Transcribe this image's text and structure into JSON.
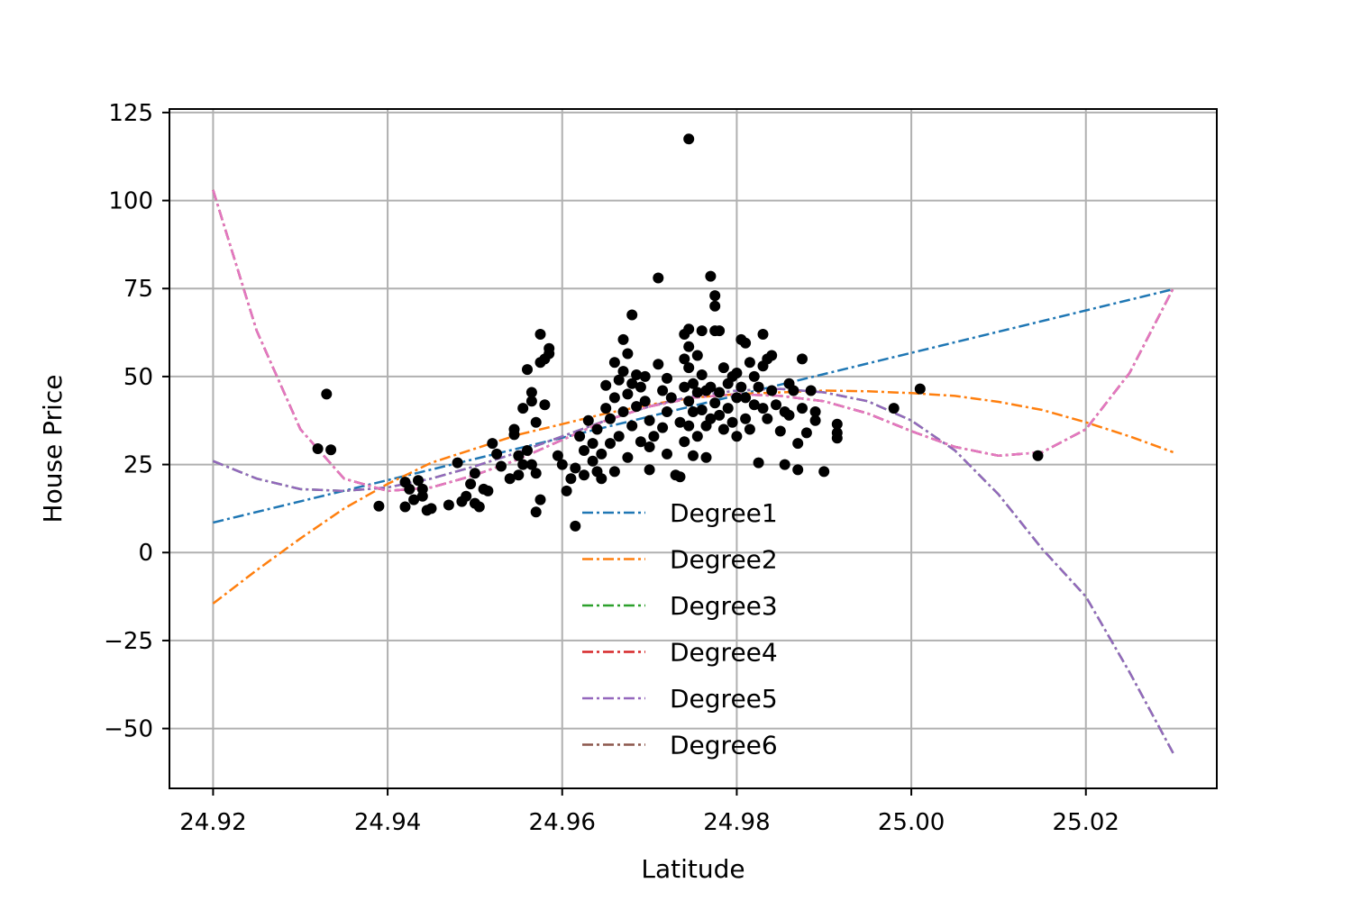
{
  "chart_data": {
    "type": "scatter",
    "title": "",
    "xlabel": "Latitude",
    "ylabel": "House Price",
    "xlim": [
      24.915,
      25.035
    ],
    "ylim": [
      -67,
      126
    ],
    "xticks": [
      24.92,
      24.94,
      24.96,
      24.98,
      25.0,
      25.02
    ],
    "xtick_labels": [
      "24.92",
      "24.94",
      "24.96",
      "24.98",
      "25.00",
      "25.02"
    ],
    "yticks": [
      125,
      100,
      75,
      50,
      25,
      0,
      -25,
      -50
    ],
    "ytick_labels": [
      "125",
      "100",
      "75",
      "50",
      "25",
      "0",
      "−25",
      "−50"
    ],
    "grid": true,
    "legend_position": "lower-center",
    "scatter": {
      "color": "#000000",
      "points": [
        [
          24.933,
          45
        ],
        [
          24.932,
          29.5
        ],
        [
          24.9335,
          29.2
        ],
        [
          24.939,
          13.2
        ],
        [
          24.942,
          20
        ],
        [
          24.9425,
          18
        ],
        [
          24.942,
          13
        ],
        [
          24.943,
          15
        ],
        [
          24.9435,
          20.5
        ],
        [
          24.944,
          16
        ],
        [
          24.9445,
          12
        ],
        [
          24.945,
          12.5
        ],
        [
          24.944,
          18
        ],
        [
          24.948,
          25.5
        ],
        [
          24.947,
          13.5
        ],
        [
          24.9485,
          14.5
        ],
        [
          24.949,
          16
        ],
        [
          24.9495,
          19.5
        ],
        [
          24.95,
          22.5
        ],
        [
          24.95,
          14
        ],
        [
          24.9505,
          13
        ],
        [
          24.951,
          18
        ],
        [
          24.9515,
          17.5
        ],
        [
          24.952,
          31
        ],
        [
          24.9525,
          28
        ],
        [
          24.953,
          24.5
        ],
        [
          24.954,
          21
        ],
        [
          24.9545,
          33.5
        ],
        [
          24.955,
          27.5
        ],
        [
          24.955,
          22
        ],
        [
          24.9555,
          25
        ],
        [
          24.956,
          52
        ],
        [
          24.9565,
          45.5
        ],
        [
          24.9565,
          43
        ],
        [
          24.957,
          37
        ],
        [
          24.9575,
          62
        ],
        [
          24.9575,
          54
        ],
        [
          24.958,
          55
        ],
        [
          24.9585,
          58
        ],
        [
          24.9585,
          56.5
        ],
        [
          24.9575,
          15
        ],
        [
          24.957,
          11.5
        ],
        [
          24.958,
          42
        ],
        [
          24.9555,
          41
        ],
        [
          24.9545,
          35
        ],
        [
          24.956,
          29
        ],
        [
          24.9565,
          25
        ],
        [
          24.957,
          22.5
        ],
        [
          24.9595,
          27.5
        ],
        [
          24.96,
          25
        ],
        [
          24.9605,
          17.5
        ],
        [
          24.961,
          21
        ],
        [
          24.9615,
          24
        ],
        [
          24.9615,
          7.5
        ],
        [
          24.962,
          33
        ],
        [
          24.9625,
          29
        ],
        [
          24.9625,
          22
        ],
        [
          24.963,
          37.5
        ],
        [
          24.9635,
          31
        ],
        [
          24.9635,
          26
        ],
        [
          24.964,
          23
        ],
        [
          24.964,
          35
        ],
        [
          24.9645,
          28
        ],
        [
          24.9645,
          21
        ],
        [
          24.965,
          47.5
        ],
        [
          24.965,
          41
        ],
        [
          24.9655,
          38
        ],
        [
          24.9655,
          31
        ],
        [
          24.966,
          54
        ],
        [
          24.966,
          44
        ],
        [
          24.966,
          23
        ],
        [
          24.9665,
          49
        ],
        [
          24.9665,
          33
        ],
        [
          24.967,
          60.5
        ],
        [
          24.967,
          51.5
        ],
        [
          24.967,
          40
        ],
        [
          24.9675,
          56.5
        ],
        [
          24.9675,
          45
        ],
        [
          24.9675,
          27
        ],
        [
          24.968,
          67.5
        ],
        [
          24.968,
          48
        ],
        [
          24.968,
          36
        ],
        [
          24.9685,
          50.5
        ],
        [
          24.9685,
          41.5
        ],
        [
          24.969,
          47
        ],
        [
          24.969,
          31.5
        ],
        [
          24.9695,
          50
        ],
        [
          24.9695,
          43
        ],
        [
          24.97,
          37.5
        ],
        [
          24.97,
          30
        ],
        [
          24.97,
          23.5
        ],
        [
          24.9705,
          33
        ],
        [
          24.971,
          78
        ],
        [
          24.971,
          53.5
        ],
        [
          24.9715,
          46
        ],
        [
          24.9715,
          35.5
        ],
        [
          24.972,
          49.5
        ],
        [
          24.972,
          40
        ],
        [
          24.972,
          28
        ],
        [
          24.9725,
          44
        ],
        [
          24.973,
          22
        ],
        [
          24.9735,
          21.5
        ],
        [
          24.9735,
          37
        ],
        [
          24.974,
          62
        ],
        [
          24.974,
          55
        ],
        [
          24.974,
          47
        ],
        [
          24.974,
          31.5
        ],
        [
          24.9745,
          117.5
        ],
        [
          24.9745,
          63.5
        ],
        [
          24.9745,
          58.5
        ],
        [
          24.9745,
          52.5
        ],
        [
          24.9745,
          43
        ],
        [
          24.9745,
          36
        ],
        [
          24.975,
          48
        ],
        [
          24.975,
          40
        ],
        [
          24.975,
          27.5
        ],
        [
          24.9755,
          56
        ],
        [
          24.9755,
          45.5
        ],
        [
          24.9755,
          33
        ],
        [
          24.976,
          63
        ],
        [
          24.976,
          50.5
        ],
        [
          24.976,
          40.5
        ],
        [
          24.9765,
          46
        ],
        [
          24.9765,
          36
        ],
        [
          24.9765,
          27
        ],
        [
          24.977,
          78.5
        ],
        [
          24.977,
          47
        ],
        [
          24.977,
          38
        ],
        [
          24.9775,
          73
        ],
        [
          24.9775,
          70
        ],
        [
          24.9775,
          63
        ],
        [
          24.9775,
          42.5
        ],
        [
          24.978,
          63
        ],
        [
          24.978,
          45.5
        ],
        [
          24.978,
          39
        ],
        [
          24.9785,
          52.5
        ],
        [
          24.9785,
          35
        ],
        [
          24.979,
          48
        ],
        [
          24.979,
          41
        ],
        [
          24.9795,
          50
        ],
        [
          24.9795,
          37
        ],
        [
          24.98,
          51
        ],
        [
          24.98,
          44
        ],
        [
          24.98,
          33
        ],
        [
          24.9805,
          60.5
        ],
        [
          24.9805,
          47
        ],
        [
          24.981,
          59.5
        ],
        [
          24.981,
          44
        ],
        [
          24.981,
          38
        ],
        [
          24.9815,
          54
        ],
        [
          24.9815,
          35
        ],
        [
          24.982,
          50
        ],
        [
          24.982,
          42
        ],
        [
          24.9825,
          47
        ],
        [
          24.9825,
          25.5
        ],
        [
          24.983,
          62
        ],
        [
          24.983,
          53
        ],
        [
          24.983,
          41
        ],
        [
          24.9835,
          55
        ],
        [
          24.9835,
          38
        ],
        [
          24.984,
          56
        ],
        [
          24.984,
          46
        ],
        [
          24.9845,
          42
        ],
        [
          24.985,
          34.5
        ],
        [
          24.9855,
          40
        ],
        [
          24.9855,
          25
        ],
        [
          24.986,
          48
        ],
        [
          24.986,
          39
        ],
        [
          24.9865,
          46
        ],
        [
          24.987,
          31
        ],
        [
          24.987,
          23.5
        ],
        [
          24.9875,
          55
        ],
        [
          24.9875,
          41
        ],
        [
          24.988,
          34
        ],
        [
          24.9885,
          46
        ],
        [
          24.989,
          40
        ],
        [
          24.989,
          37.5
        ],
        [
          24.99,
          23
        ],
        [
          24.9915,
          36.5
        ],
        [
          24.9915,
          34
        ],
        [
          24.9915,
          32.5
        ],
        [
          24.998,
          41
        ],
        [
          25.001,
          46.5
        ],
        [
          25.0145,
          27.5
        ]
      ]
    },
    "series": [
      {
        "name": "Degree1",
        "color": "#1f77b4",
        "x": [
          24.92,
          25.03
        ],
        "y": [
          8.5,
          74.8
        ]
      },
      {
        "name": "Degree2",
        "color": "#ff7f0e",
        "x": [
          24.92,
          24.925,
          24.93,
          24.935,
          24.94,
          24.945,
          24.95,
          24.955,
          24.96,
          24.965,
          24.97,
          24.975,
          24.98,
          24.985,
          24.99,
          24.995,
          25.0,
          25.005,
          25.01,
          25.015,
          25.02,
          25.025,
          25.03
        ],
        "y": [
          -14.5,
          -5,
          4,
          12.5,
          19.5,
          25.5,
          29.5,
          33.5,
          36.5,
          39.5,
          42,
          44,
          45,
          45.5,
          46,
          45.8,
          45.3,
          44.5,
          42.8,
          40.5,
          37,
          33,
          28.5
        ]
      },
      {
        "name": "Degree3",
        "color": "#2ca02c",
        "x": [
          24.92,
          24.925,
          24.93,
          24.935,
          24.94,
          24.945,
          24.95,
          24.955,
          24.96,
          24.965,
          24.97,
          24.975,
          24.98,
          24.985,
          24.99,
          24.995,
          25.0,
          25.005,
          25.01,
          25.015,
          25.02,
          25.025,
          25.03
        ],
        "y": [
          26,
          21,
          18,
          17.5,
          18.5,
          21,
          24.5,
          28.5,
          33,
          37.5,
          41.5,
          44.5,
          46,
          46.5,
          45.5,
          43,
          37.5,
          29,
          16.5,
          1,
          -12.5,
          -34,
          -57
        ]
      },
      {
        "name": "Degree4",
        "color": "#d62728",
        "x": [
          24.92,
          24.925,
          24.93,
          24.935,
          24.94,
          24.945,
          24.95,
          24.955,
          24.96,
          24.965,
          24.97,
          24.975,
          24.98,
          24.985,
          24.99,
          24.995,
          25.0,
          25.005,
          25.01,
          25.015,
          25.02,
          25.025,
          25.03
        ],
        "y": [
          103,
          63,
          35,
          21,
          17.5,
          18.5,
          22,
          26.5,
          32,
          37.5,
          41.5,
          44,
          45,
          44.5,
          43,
          39.5,
          34.5,
          30,
          27.5,
          28.5,
          35,
          51,
          75
        ]
      },
      {
        "name": "Degree5",
        "color": "#9467bd",
        "x": [
          24.92,
          24.925,
          24.93,
          24.935,
          24.94,
          24.945,
          24.95,
          24.955,
          24.96,
          24.965,
          24.97,
          24.975,
          24.98,
          24.985,
          24.99,
          24.995,
          25.0,
          25.005,
          25.01,
          25.015,
          25.02,
          25.025,
          25.03
        ],
        "y": [
          26,
          21,
          18,
          17.5,
          18.5,
          21,
          24.5,
          28.5,
          33,
          37.5,
          41.5,
          44.5,
          46,
          46.5,
          45.5,
          43,
          37.5,
          29,
          16.5,
          1,
          -12.5,
          -34,
          -57
        ]
      },
      {
        "name": "Degree6",
        "color": "#8c564b",
        "x": [
          24.92,
          24.925,
          24.93,
          24.935,
          24.94,
          24.945,
          24.95,
          24.955,
          24.96,
          24.965,
          24.97,
          24.975,
          24.98,
          24.985,
          24.99,
          24.995,
          25.0,
          25.005,
          25.01,
          25.015,
          25.02,
          25.025,
          25.03
        ],
        "y": [
          103,
          63,
          35,
          21,
          17.5,
          18.5,
          22,
          26.5,
          32,
          37.5,
          41.5,
          44,
          45,
          44.5,
          43,
          39.5,
          34.5,
          30,
          27.5,
          28.5,
          35,
          51,
          75
        ]
      },
      {
        "name": "",
        "color": "#e377c2",
        "x": [
          24.92,
          24.925,
          24.93,
          24.935,
          24.94,
          24.945,
          24.95,
          24.955,
          24.96,
          24.965,
          24.97,
          24.975,
          24.98,
          24.985,
          24.99,
          24.995,
          25.0,
          25.005,
          25.01,
          25.015,
          25.02,
          25.025,
          25.03
        ],
        "y": [
          103,
          63,
          35,
          21,
          17.5,
          18.5,
          22,
          26.5,
          32,
          37.5,
          41.5,
          44,
          45,
          44.5,
          43,
          39.5,
          34.5,
          30,
          27.5,
          28.5,
          35,
          51,
          75
        ]
      }
    ]
  }
}
